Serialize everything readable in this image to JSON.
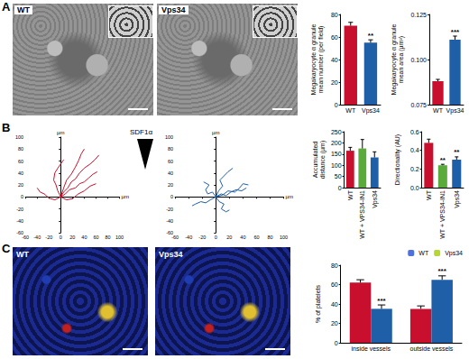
{
  "panel_labels": [
    "A",
    "B",
    "C"
  ],
  "images": [
    {
      "panel": "A",
      "label": "WT"
    },
    {
      "panel": "A",
      "label": "Vps34"
    },
    {
      "panel": "C",
      "label": "WT"
    },
    {
      "panel": "C",
      "label": "Vps34"
    }
  ],
  "chart_data": [
    {
      "type": "bar",
      "panel": "A",
      "y_label": "Megakaryocyte α granule\nmean number (per field)",
      "categories": [
        "WT",
        "Vps34"
      ],
      "values": [
        70,
        55
      ],
      "errors": [
        3,
        2.5
      ],
      "colors": [
        "#c8102e",
        "#1f5fa8"
      ],
      "annotations": [
        null,
        "**"
      ],
      "ylim": [
        0,
        80
      ],
      "yticks": [
        0,
        20,
        40,
        60,
        80
      ]
    },
    {
      "type": "bar",
      "panel": "A",
      "y_label": "Megakaryocyte α granule\nmean area (µm²)",
      "categories": [
        "WT",
        "Vps34"
      ],
      "values": [
        0.088,
        0.111
      ],
      "errors": [
        0.001,
        0.002
      ],
      "colors": [
        "#c8102e",
        "#1f5fa8"
      ],
      "annotations": [
        null,
        "***"
      ],
      "ylim": [
        0.075,
        0.125
      ],
      "yticks": [
        {
          "value": 0.075,
          "label": "0.075"
        },
        {
          "value": 0.1,
          "label": "0.100"
        },
        {
          "value": 0.125,
          "label": "0.125"
        }
      ]
    },
    {
      "type": "line",
      "panel": "B",
      "x_label": "µm",
      "y_label": "µm",
      "annotation": "SDF1α",
      "color": "#c8102e",
      "xlim": [
        -60,
        100
      ],
      "xticks": [
        -60,
        -40,
        -20,
        0,
        20,
        40,
        60,
        80,
        100
      ],
      "ylim": [
        -60,
        100
      ],
      "yticks": [
        -60,
        -40,
        -20,
        0,
        20,
        40,
        60,
        80,
        100
      ],
      "series": [
        {
          "values": [
            [
              0,
              0
            ],
            [
              5,
              8
            ],
            [
              12,
              15
            ],
            [
              18,
              25
            ],
            [
              25,
              30
            ],
            [
              32,
              40
            ],
            [
              40,
              48
            ],
            [
              50,
              55
            ],
            [
              58,
              62
            ],
            [
              65,
              70
            ]
          ]
        },
        {
          "values": [
            [
              0,
              0
            ],
            [
              8,
              5
            ],
            [
              15,
              12
            ],
            [
              25,
              15
            ],
            [
              32,
              22
            ],
            [
              40,
              25
            ],
            [
              48,
              32
            ],
            [
              55,
              38
            ],
            [
              62,
              42
            ]
          ]
        },
        {
          "values": [
            [
              0,
              0
            ],
            [
              -5,
              10
            ],
            [
              -8,
              20
            ],
            [
              -12,
              28
            ],
            [
              -10,
              40
            ],
            [
              -5,
              48
            ],
            [
              0,
              55
            ],
            [
              5,
              62
            ]
          ]
        },
        {
          "values": [
            [
              0,
              0
            ],
            [
              -10,
              -5
            ],
            [
              -20,
              -2
            ],
            [
              -28,
              5
            ],
            [
              -35,
              8
            ],
            [
              -40,
              15
            ]
          ]
        },
        {
          "values": [
            [
              0,
              0
            ],
            [
              10,
              -5
            ],
            [
              20,
              -3
            ],
            [
              30,
              5
            ],
            [
              40,
              10
            ],
            [
              50,
              18
            ],
            [
              60,
              22
            ]
          ]
        },
        {
          "values": [
            [
              0,
              0
            ],
            [
              5,
              15
            ],
            [
              10,
              28
            ],
            [
              18,
              38
            ],
            [
              25,
              50
            ],
            [
              30,
              60
            ],
            [
              35,
              72
            ],
            [
              40,
              80
            ]
          ]
        }
      ]
    },
    {
      "type": "line",
      "panel": "B",
      "x_label": "µm",
      "y_label": "µm",
      "color": "#1f5fa8",
      "xlim": [
        -60,
        100
      ],
      "xticks": [
        -60,
        -40,
        -20,
        0,
        20,
        40,
        60,
        80,
        100
      ],
      "ylim": [
        -60,
        100
      ],
      "yticks": [
        -60,
        -40,
        -20,
        0,
        20,
        40,
        60,
        80,
        100
      ],
      "series": [
        {
          "values": [
            [
              0,
              0
            ],
            [
              8,
              5
            ],
            [
              15,
              2
            ],
            [
              22,
              8
            ],
            [
              30,
              12
            ],
            [
              38,
              10
            ],
            [
              45,
              15
            ]
          ]
        },
        {
          "values": [
            [
              0,
              0
            ],
            [
              -5,
              8
            ],
            [
              -12,
              5
            ],
            [
              -15,
              12
            ],
            [
              -10,
              20
            ],
            [
              -18,
              25
            ]
          ]
        },
        {
          "values": [
            [
              0,
              0
            ],
            [
              5,
              -8
            ],
            [
              12,
              -12
            ],
            [
              8,
              -20
            ],
            [
              15,
              -25
            ],
            [
              20,
              -22
            ]
          ]
        },
        {
          "values": [
            [
              0,
              0
            ],
            [
              -8,
              -5
            ],
            [
              -15,
              -10
            ],
            [
              -22,
              -8
            ],
            [
              -30,
              -12
            ],
            [
              -35,
              -15
            ]
          ]
        },
        {
          "values": [
            [
              0,
              0
            ],
            [
              4,
              10
            ],
            [
              10,
              18
            ],
            [
              6,
              28
            ],
            [
              12,
              35
            ],
            [
              18,
              42
            ],
            [
              25,
              48
            ]
          ]
        },
        {
          "values": [
            [
              0,
              0
            ],
            [
              10,
              3
            ],
            [
              18,
              10
            ],
            [
              28,
              8
            ],
            [
              35,
              15
            ],
            [
              40,
              22
            ],
            [
              48,
              20
            ]
          ]
        }
      ]
    },
    {
      "type": "bar",
      "panel": "B",
      "y_label": "Accumulated\ndistance (µm)",
      "categories": [
        "WT",
        "WT + VPS34-IN1",
        "Vps34"
      ],
      "values": [
        165,
        175,
        135
      ],
      "errors": [
        15,
        40,
        25
      ],
      "colors": [
        "#c8102e",
        "#5aaa3c",
        "#1f5fa8"
      ],
      "annotations": [
        null,
        null,
        null
      ],
      "ylim": [
        0,
        250
      ],
      "yticks": [
        0,
        50,
        100,
        150,
        200,
        250
      ]
    },
    {
      "type": "bar",
      "panel": "B",
      "y_label": "Directionality (AU)",
      "categories": [
        "WT",
        "WT + VPS34-IN1",
        "Vps34"
      ],
      "values": [
        0.48,
        0.24,
        0.3
      ],
      "errors": [
        0.04,
        0.01,
        0.03
      ],
      "colors": [
        "#c8102e",
        "#5aaa3c",
        "#1f5fa8"
      ],
      "annotations": [
        null,
        "**",
        "**"
      ],
      "ylim": [
        0,
        0.6
      ],
      "yticks": [
        {
          "value": 0,
          "label": "0.0"
        },
        {
          "value": 0.2,
          "label": "0.2"
        },
        {
          "value": 0.4,
          "label": "0.4"
        },
        {
          "value": 0.6,
          "label": "0.6"
        }
      ]
    },
    {
      "type": "bar",
      "panel": "C",
      "y_label": "% of platelets",
      "legend": "top-right",
      "categories": [
        "inside vessels",
        "outside vessels"
      ],
      "series": [
        {
          "name": "WT",
          "color": "#c8102e",
          "values": [
            62,
            35
          ],
          "errors": [
            3,
            3
          ],
          "annotations": [
            null,
            null
          ]
        },
        {
          "name": "Vps34",
          "color": "#1f5fa8",
          "values": [
            35,
            65
          ],
          "errors": [
            4,
            4
          ],
          "annotations": [
            "***",
            "***"
          ]
        }
      ],
      "ylim": [
        0,
        80
      ],
      "yticks": [
        0,
        20,
        40,
        60,
        80
      ]
    }
  ]
}
